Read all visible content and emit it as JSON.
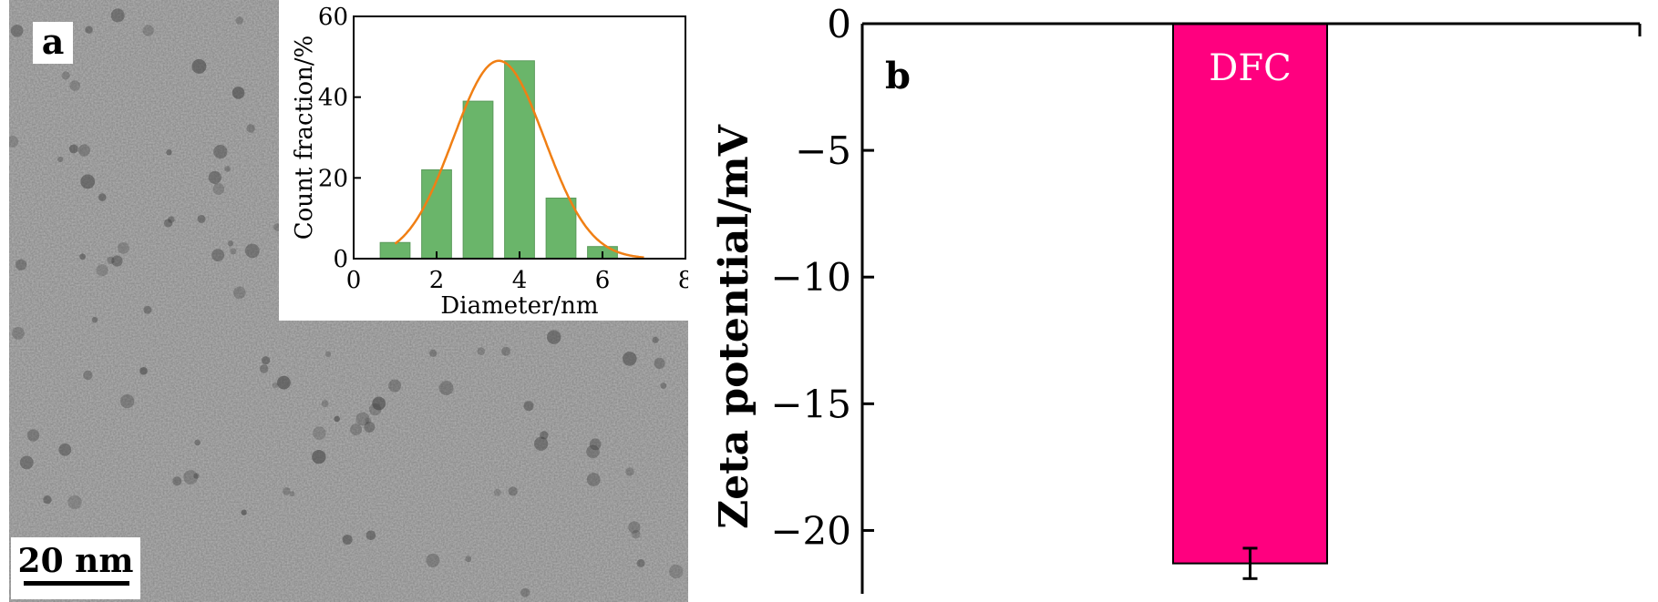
{
  "panel_a": {
    "label": "a",
    "scale_bar_label": "20 nm"
  },
  "panel_b": {
    "label": "b"
  },
  "chart_data": [
    {
      "type": "bar",
      "title": "",
      "xlabel": "Diameter/nm",
      "ylabel": "Count fraction/%",
      "xlim": [
        0,
        8
      ],
      "ylim": [
        0,
        60
      ],
      "xticks": [
        "0",
        "2",
        "4",
        "6",
        "8"
      ],
      "yticks": [
        "0",
        "20",
        "40",
        "60"
      ],
      "x": [
        1,
        2,
        3,
        4,
        5,
        6
      ],
      "values": [
        4,
        22,
        39,
        49,
        15,
        3
      ],
      "bar_color": "#6ab56a",
      "fit_curve": {
        "type": "gaussian",
        "center": 3.5,
        "peak": 49,
        "sigma": 1.1,
        "color": "#f07f14"
      }
    },
    {
      "type": "bar",
      "title": "",
      "xlabel": "",
      "ylabel": "Zeta potential/mV",
      "ylim": [
        -22.5,
        0
      ],
      "yticks": [
        "0",
        "−5",
        "−10",
        "−15",
        "−20"
      ],
      "categories": [
        "DFC"
      ],
      "values": [
        -21.3
      ],
      "error": [
        0.6
      ],
      "bar_color": "#ff007f"
    }
  ]
}
